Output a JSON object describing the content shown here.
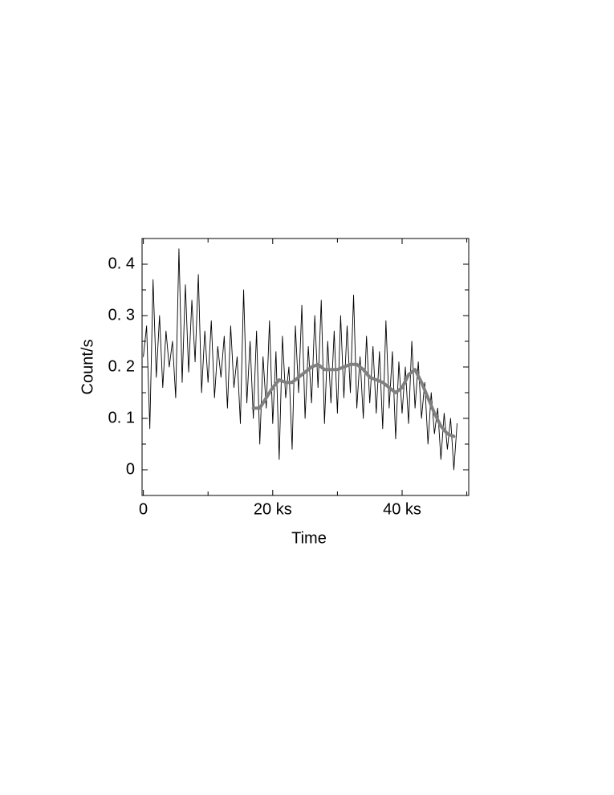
{
  "chart_data": {
    "type": "line",
    "xlabel": "Time",
    "ylabel": "Count/s",
    "xlim": [
      -0.2,
      50.3
    ],
    "ylim": [
      -0.05,
      0.45
    ],
    "xticks": [
      0,
      {
        "value": 20,
        "label": "20 ks"
      },
      {
        "value": 40,
        "label": "40 ks"
      }
    ],
    "xminorticks": [
      10,
      30,
      50
    ],
    "yticks": [
      {
        "value": 0,
        "label": "0"
      },
      {
        "value": 0.1,
        "label": "0. 1"
      },
      {
        "value": 0.2,
        "label": "0. 2"
      },
      {
        "value": 0.3,
        "label": "0. 3"
      },
      {
        "value": 0.4,
        "label": "0. 4"
      }
    ],
    "yminorticks": [
      0.05,
      0.15,
      0.25,
      0.35
    ],
    "series": [
      {
        "color": "#000000",
        "x": [
          0,
          0.5,
          1,
          1.5,
          2,
          2.5,
          3,
          3.5,
          4,
          4.5,
          5,
          5.5,
          6,
          6.5,
          7,
          7.5,
          8,
          8.5,
          9,
          9.5,
          10,
          10.5,
          11,
          11.5,
          12,
          12.5,
          13,
          13.5,
          14,
          14.5,
          15,
          15.5,
          16,
          16.5,
          17,
          17.5,
          18,
          18.5,
          19,
          19.5,
          20,
          20.5,
          21,
          21.5,
          22,
          22.5,
          23,
          23.5,
          24,
          24.5,
          25,
          25.5,
          26,
          26.5,
          27,
          27.5,
          28,
          28.5,
          29,
          29.5,
          30,
          30.5,
          31,
          31.5,
          32,
          32.5,
          33,
          33.5,
          34,
          34.5,
          35,
          35.5,
          36,
          36.5,
          37,
          37.5,
          38,
          38.5,
          39,
          39.5,
          40,
          40.5,
          41,
          41.5,
          42,
          42.5,
          43,
          43.5,
          44,
          44.5,
          45,
          45.5,
          46,
          46.5,
          47,
          47.5,
          48,
          48.5
        ],
        "values": [
          0.22,
          0.28,
          0.08,
          0.37,
          0.18,
          0.3,
          0.16,
          0.27,
          0.2,
          0.25,
          0.14,
          0.43,
          0.17,
          0.36,
          0.19,
          0.33,
          0.21,
          0.38,
          0.15,
          0.27,
          0.17,
          0.29,
          0.14,
          0.24,
          0.18,
          0.26,
          0.12,
          0.28,
          0.16,
          0.22,
          0.09,
          0.35,
          0.13,
          0.25,
          0.1,
          0.27,
          0.05,
          0.22,
          0.12,
          0.29,
          0.09,
          0.23,
          0.02,
          0.26,
          0.14,
          0.2,
          0.04,
          0.28,
          0.15,
          0.32,
          0.1,
          0.24,
          0.13,
          0.3,
          0.16,
          0.33,
          0.09,
          0.25,
          0.13,
          0.27,
          0.11,
          0.3,
          0.14,
          0.28,
          0.15,
          0.34,
          0.12,
          0.22,
          0.1,
          0.26,
          0.13,
          0.24,
          0.11,
          0.23,
          0.08,
          0.29,
          0.12,
          0.23,
          0.06,
          0.21,
          0.11,
          0.2,
          0.09,
          0.25,
          0.12,
          0.21,
          0.1,
          0.17,
          0.05,
          0.15,
          0.07,
          0.12,
          0.02,
          0.11,
          0.04,
          0.1,
          0.0,
          0.09
        ]
      },
      {
        "color": "#808080",
        "x": [
          17,
          18,
          19,
          20,
          21,
          22,
          23,
          24,
          25,
          26,
          27,
          28,
          29,
          30,
          31,
          32,
          33,
          34,
          35,
          36,
          37,
          38,
          39,
          40,
          41,
          42,
          43,
          44,
          45,
          46,
          47,
          48
        ],
        "values": [
          0.12,
          0.12,
          0.14,
          0.16,
          0.175,
          0.17,
          0.17,
          0.18,
          0.19,
          0.2,
          0.205,
          0.195,
          0.195,
          0.195,
          0.2,
          0.205,
          0.205,
          0.195,
          0.18,
          0.175,
          0.17,
          0.16,
          0.15,
          0.16,
          0.185,
          0.195,
          0.17,
          0.14,
          0.11,
          0.085,
          0.07,
          0.065
        ]
      }
    ]
  }
}
